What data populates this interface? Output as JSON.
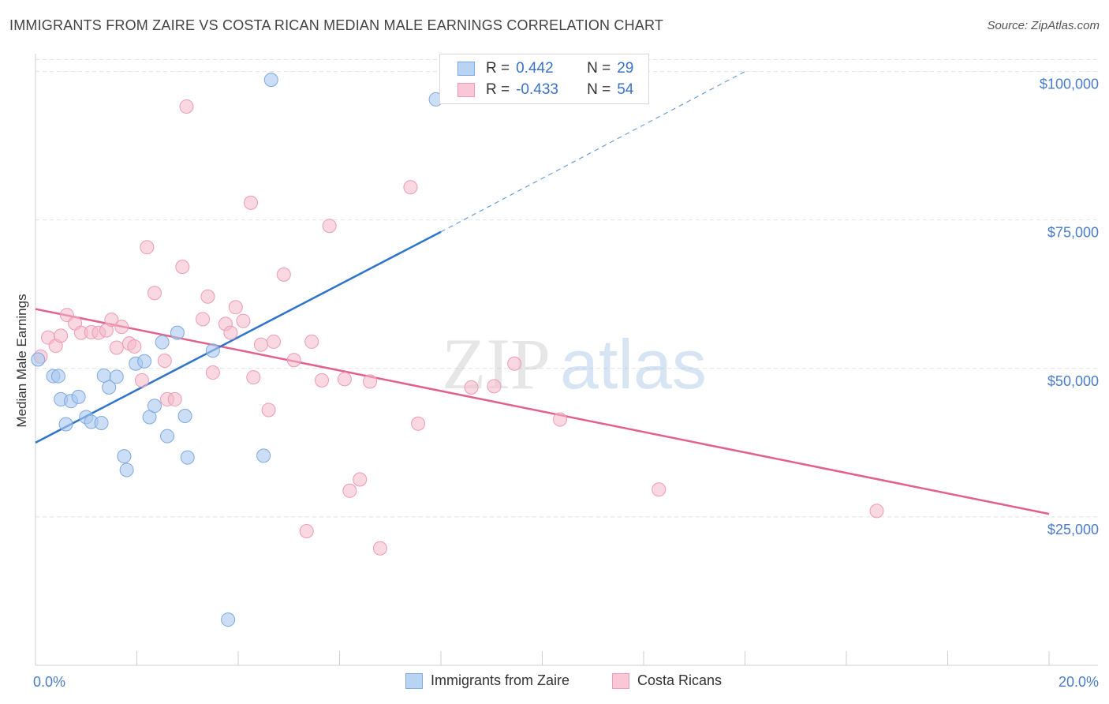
{
  "header": {
    "title": "IMMIGRANTS FROM ZAIRE VS COSTA RICAN MEDIAN MALE EARNINGS CORRELATION CHART",
    "source": "Source: ZipAtlas.com"
  },
  "legend": {
    "r_label": "R =",
    "n_label": "N =",
    "rows": [
      {
        "r": "0.442",
        "n": "29"
      },
      {
        "r": "-0.433",
        "n": "54"
      }
    ]
  },
  "watermark": {
    "zip": "ZIP",
    "atlas": "atlas"
  },
  "chart_data": {
    "type": "scatter",
    "title": "IMMIGRANTS FROM ZAIRE VS COSTA RICAN MEDIAN MALE EARNINGS CORRELATION CHART",
    "xlabel": "",
    "ylabel": "Median Male Earnings",
    "xlim": [
      0,
      20
    ],
    "ylim": [
      0,
      103000
    ],
    "x_tick_labels": [
      "0.0%",
      "20.0%"
    ],
    "y_ticks": [
      {
        "value": 25000,
        "label": "$25,000"
      },
      {
        "value": 50000,
        "label": "$50,000"
      },
      {
        "value": 75000,
        "label": "$75,000"
      },
      {
        "value": 100000,
        "label": "$100,000"
      }
    ],
    "series": [
      {
        "name": "Immigrants from Zaire",
        "color": "#a9c8ef",
        "line_color": "#2f74cc",
        "points": [
          [
            0.05,
            51500
          ],
          [
            0.35,
            48700
          ],
          [
            0.45,
            48700
          ],
          [
            0.5,
            44800
          ],
          [
            0.6,
            40600
          ],
          [
            0.7,
            44500
          ],
          [
            0.85,
            45200
          ],
          [
            1.0,
            41800
          ],
          [
            1.1,
            41000
          ],
          [
            1.3,
            40800
          ],
          [
            1.35,
            48800
          ],
          [
            1.45,
            46800
          ],
          [
            1.6,
            48600
          ],
          [
            1.75,
            35200
          ],
          [
            1.8,
            32900
          ],
          [
            1.98,
            50800
          ],
          [
            2.15,
            51200
          ],
          [
            2.25,
            41800
          ],
          [
            2.35,
            43700
          ],
          [
            2.5,
            54400
          ],
          [
            2.6,
            38600
          ],
          [
            2.8,
            56000
          ],
          [
            2.95,
            42000
          ],
          [
            3.0,
            35000
          ],
          [
            3.5,
            53000
          ],
          [
            3.8,
            7700
          ],
          [
            4.5,
            35300
          ],
          [
            4.65,
            98600
          ],
          [
            7.9,
            95300
          ]
        ],
        "trend": {
          "x": [
            0,
            8.0
          ],
          "y": [
            37500,
            73000
          ]
        },
        "trend_extension": {
          "x": [
            8.0,
            14.0
          ],
          "y": [
            73000,
            100000
          ]
        }
      },
      {
        "name": "Costa Ricans",
        "color": "#f4b8cb",
        "line_color": "#e2608e",
        "points": [
          [
            0.1,
            52000
          ],
          [
            0.25,
            55200
          ],
          [
            0.4,
            53800
          ],
          [
            0.5,
            55500
          ],
          [
            0.62,
            59000
          ],
          [
            0.78,
            57600
          ],
          [
            0.9,
            56000
          ],
          [
            1.1,
            56100
          ],
          [
            1.25,
            56000
          ],
          [
            1.4,
            56400
          ],
          [
            1.5,
            58200
          ],
          [
            1.6,
            53500
          ],
          [
            1.7,
            57000
          ],
          [
            1.85,
            54200
          ],
          [
            1.95,
            53700
          ],
          [
            2.1,
            48000
          ],
          [
            2.2,
            70400
          ],
          [
            2.35,
            62700
          ],
          [
            2.55,
            51300
          ],
          [
            2.6,
            44800
          ],
          [
            2.75,
            44800
          ],
          [
            2.9,
            67100
          ],
          [
            2.98,
            94100
          ],
          [
            3.3,
            58300
          ],
          [
            3.4,
            62100
          ],
          [
            3.5,
            49300
          ],
          [
            3.75,
            57500
          ],
          [
            3.85,
            56000
          ],
          [
            3.95,
            60300
          ],
          [
            4.25,
            77900
          ],
          [
            4.3,
            48500
          ],
          [
            4.45,
            54000
          ],
          [
            4.6,
            43000
          ],
          [
            4.7,
            54500
          ],
          [
            4.9,
            65800
          ],
          [
            5.1,
            51400
          ],
          [
            5.35,
            22600
          ],
          [
            5.45,
            54500
          ],
          [
            5.65,
            48000
          ],
          [
            6.1,
            48200
          ],
          [
            6.2,
            29400
          ],
          [
            6.4,
            31300
          ],
          [
            6.6,
            47800
          ],
          [
            6.8,
            19700
          ],
          [
            7.4,
            80500
          ],
          [
            7.55,
            40700
          ],
          [
            8.6,
            46800
          ],
          [
            9.05,
            47000
          ],
          [
            9.45,
            50800
          ],
          [
            10.35,
            41400
          ],
          [
            12.3,
            29600
          ],
          [
            16.6,
            26000
          ],
          [
            5.8,
            74000
          ],
          [
            4.1,
            58000
          ]
        ],
        "trend": {
          "x": [
            0,
            20
          ],
          "y": [
            60000,
            25500
          ]
        }
      }
    ]
  },
  "bottom_legend": {
    "items": [
      {
        "label": "Immigrants from Zaire"
      },
      {
        "label": "Costa Ricans"
      }
    ]
  }
}
